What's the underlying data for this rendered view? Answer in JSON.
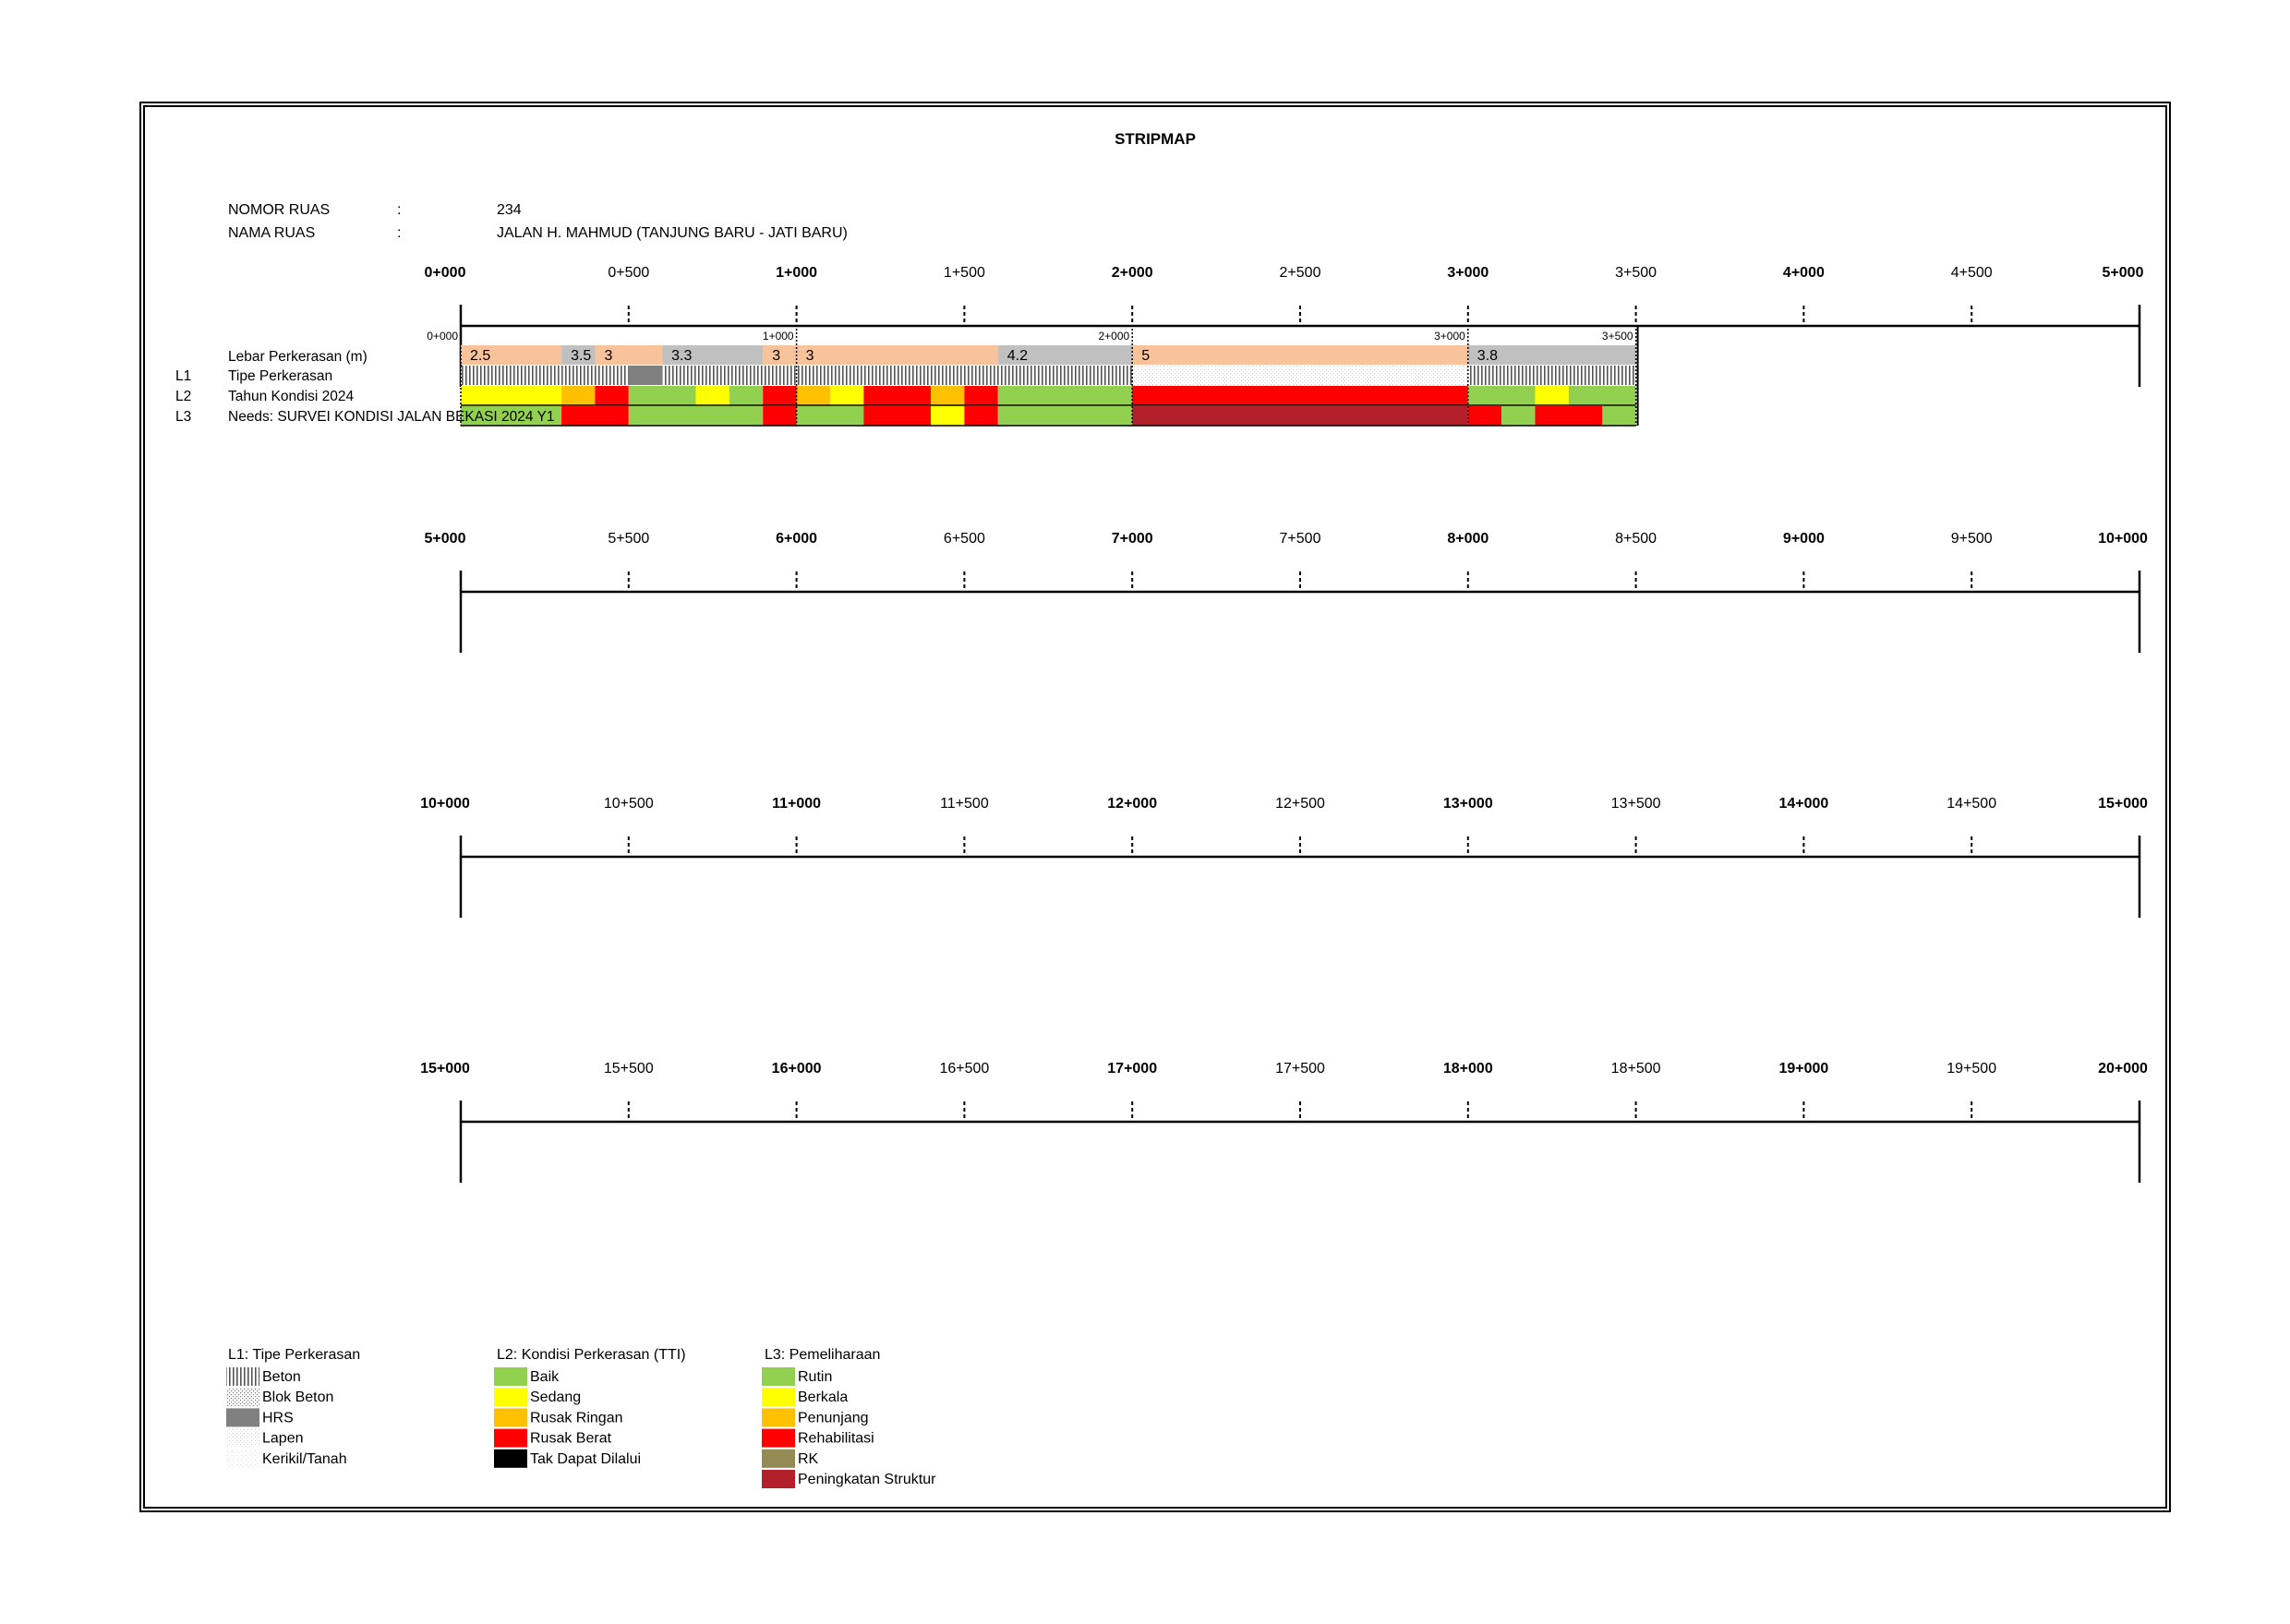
{
  "title": "STRIPMAP",
  "info": {
    "nomor_label": "NOMOR RUAS",
    "nomor_colon": ":",
    "nomor_value": "234",
    "nama_label": "NAMA RUAS",
    "nama_colon": ":",
    "nama_value": "JALAN H. MAHMUD (TANJUNG BARU - JATI BARU)"
  },
  "rows": [
    {
      "tag": "",
      "label": "Lebar Perkerasan (m)"
    },
    {
      "tag": "L1",
      "label": "Tipe Perkerasan"
    },
    {
      "tag": "L2",
      "label": "Tahun Kondisi 2024"
    },
    {
      "tag": "L3",
      "label": "Needs: SURVEI KONDISI JALAN BEKASI 2024 Y1"
    }
  ],
  "chart_data": {
    "type": "stripmap",
    "road_length_km": 3.5,
    "scale_bands": [
      {
        "labels": [
          "0+000",
          "0+500",
          "1+000",
          "1+500",
          "2+000",
          "2+500",
          "3+000",
          "3+500",
          "4+000",
          "4+500",
          "5+000"
        ]
      },
      {
        "labels": [
          "5+000",
          "5+500",
          "6+000",
          "6+500",
          "7+000",
          "7+500",
          "8+000",
          "8+500",
          "9+000",
          "9+500",
          "10+000"
        ]
      },
      {
        "labels": [
          "10+000",
          "10+500",
          "11+000",
          "11+500",
          "12+000",
          "12+500",
          "13+000",
          "13+500",
          "14+000",
          "14+500",
          "15+000"
        ]
      },
      {
        "labels": [
          "15+000",
          "15+500",
          "16+000",
          "16+500",
          "17+000",
          "17+500",
          "18+000",
          "18+500",
          "19+000",
          "19+500",
          "20+000"
        ]
      }
    ],
    "small_markers": [
      {
        "km": 0,
        "label": "0+000"
      },
      {
        "km": 1,
        "label": "1+000"
      },
      {
        "km": 2,
        "label": "2+000"
      },
      {
        "km": 3,
        "label": "3+000"
      },
      {
        "km": 3.5,
        "label": "3+500"
      }
    ],
    "width_segments": [
      {
        "from": 0.0,
        "to": 0.3,
        "value": "2.5",
        "color": "#F8C39A"
      },
      {
        "from": 0.3,
        "to": 0.4,
        "value": "3.5",
        "color": "#C0C0C0"
      },
      {
        "from": 0.4,
        "to": 0.6,
        "value": "3",
        "color": "#F8C39A"
      },
      {
        "from": 0.6,
        "to": 0.9,
        "value": "3.3",
        "color": "#C0C0C0"
      },
      {
        "from": 0.9,
        "to": 1.0,
        "value": "3",
        "color": "#F8C39A"
      },
      {
        "from": 1.0,
        "to": 1.6,
        "value": "3",
        "color": "#F8C39A"
      },
      {
        "from": 1.6,
        "to": 2.0,
        "value": "4.2",
        "color": "#C0C0C0"
      },
      {
        "from": 2.0,
        "to": 3.0,
        "value": "5",
        "color": "#F8C39A"
      },
      {
        "from": 3.0,
        "to": 3.5,
        "value": "3.8",
        "color": "#C0C0C0"
      }
    ],
    "l1_segments": [
      {
        "from": 0.0,
        "to": 0.5,
        "type": "Beton"
      },
      {
        "from": 0.5,
        "to": 0.6,
        "type": "HRS"
      },
      {
        "from": 0.6,
        "to": 2.0,
        "type": "Beton"
      },
      {
        "from": 2.0,
        "to": 3.0,
        "type": "Lapen"
      },
      {
        "from": 3.0,
        "to": 3.5,
        "type": "Beton"
      }
    ],
    "l2_segments": [
      {
        "from": 0.0,
        "to": 0.3,
        "class": "Sedang"
      },
      {
        "from": 0.3,
        "to": 0.4,
        "class": "Rusak Ringan"
      },
      {
        "from": 0.4,
        "to": 0.5,
        "class": "Rusak Berat"
      },
      {
        "from": 0.5,
        "to": 0.7,
        "class": "Baik"
      },
      {
        "from": 0.7,
        "to": 0.8,
        "class": "Sedang"
      },
      {
        "from": 0.8,
        "to": 0.9,
        "class": "Baik"
      },
      {
        "from": 0.9,
        "to": 1.0,
        "class": "Rusak Berat"
      },
      {
        "from": 1.0,
        "to": 1.1,
        "class": "Rusak Ringan"
      },
      {
        "from": 1.1,
        "to": 1.2,
        "class": "Sedang"
      },
      {
        "from": 1.2,
        "to": 1.4,
        "class": "Rusak Berat"
      },
      {
        "from": 1.4,
        "to": 1.5,
        "class": "Rusak Ringan"
      },
      {
        "from": 1.5,
        "to": 1.6,
        "class": "Rusak Berat"
      },
      {
        "from": 1.6,
        "to": 2.0,
        "class": "Baik"
      },
      {
        "from": 2.0,
        "to": 3.0,
        "class": "Rusak Berat"
      },
      {
        "from": 3.0,
        "to": 3.2,
        "class": "Baik"
      },
      {
        "from": 3.2,
        "to": 3.3,
        "class": "Sedang"
      },
      {
        "from": 3.3,
        "to": 3.5,
        "class": "Baik"
      }
    ],
    "l3_segments": [
      {
        "from": 0.0,
        "to": 0.3,
        "class": "Rutin"
      },
      {
        "from": 0.3,
        "to": 0.5,
        "class": "Rehabilitasi"
      },
      {
        "from": 0.5,
        "to": 0.9,
        "class": "Rutin"
      },
      {
        "from": 0.9,
        "to": 1.0,
        "class": "Rehabilitasi"
      },
      {
        "from": 1.0,
        "to": 1.2,
        "class": "Rutin"
      },
      {
        "from": 1.2,
        "to": 1.4,
        "class": "Rehabilitasi"
      },
      {
        "from": 1.4,
        "to": 1.5,
        "class": "Berkala"
      },
      {
        "from": 1.5,
        "to": 1.6,
        "class": "Rehabilitasi"
      },
      {
        "from": 1.6,
        "to": 2.0,
        "class": "Rutin"
      },
      {
        "from": 2.0,
        "to": 3.0,
        "class": "Peningkatan Struktur"
      },
      {
        "from": 3.0,
        "to": 3.1,
        "class": "Rehabilitasi"
      },
      {
        "from": 3.1,
        "to": 3.2,
        "class": "Rutin"
      },
      {
        "from": 3.2,
        "to": 3.4,
        "class": "Rehabilitasi"
      },
      {
        "from": 3.4,
        "to": 3.5,
        "class": "Rutin"
      }
    ]
  },
  "legend": {
    "l1": {
      "title": "L1: Tipe Perkerasan",
      "items": [
        {
          "label": "Beton",
          "key": "Beton"
        },
        {
          "label": "Blok Beton",
          "key": "Blok Beton"
        },
        {
          "label": "HRS",
          "key": "HRS"
        },
        {
          "label": "Lapen",
          "key": "Lapen"
        },
        {
          "label": "Kerikil/Tanah",
          "key": "Kerikil/Tanah"
        }
      ]
    },
    "l2": {
      "title": "L2: Kondisi Perkerasan (TTI)",
      "items": [
        {
          "label": "Baik",
          "color": "#92D050"
        },
        {
          "label": "Sedang",
          "color": "#FFFF00"
        },
        {
          "label": "Rusak Ringan",
          "color": "#FFC000"
        },
        {
          "label": "Rusak Berat",
          "color": "#FF0000"
        },
        {
          "label": "Tak Dapat Dilalui",
          "color": "#000000"
        }
      ]
    },
    "l3": {
      "title": "L3: Pemeliharaan",
      "items": [
        {
          "label": "Rutin",
          "color": "#92D050"
        },
        {
          "label": "Berkala",
          "color": "#FFFF00"
        },
        {
          "label": "Penunjang",
          "color": "#FFC000"
        },
        {
          "label": "Rehabilitasi",
          "color": "#FF0000"
        },
        {
          "label": "RK",
          "color": "#948A54"
        },
        {
          "label": "Peningkatan Struktur",
          "color": "#B2202A"
        }
      ]
    }
  }
}
